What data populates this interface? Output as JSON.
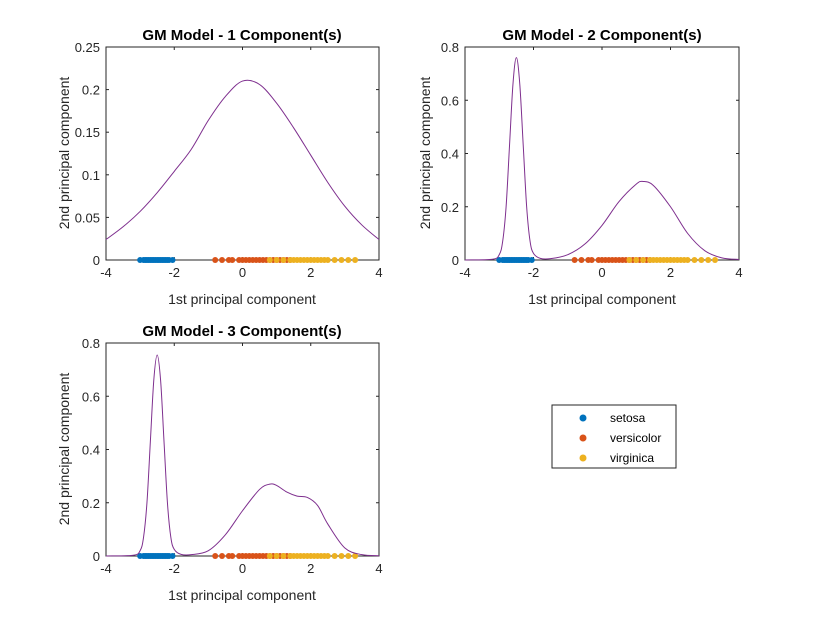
{
  "legend": {
    "entries": [
      {
        "label": "setosa",
        "color": "#0072BD"
      },
      {
        "label": "versicolor",
        "color": "#D95319"
      },
      {
        "label": "virginica",
        "color": "#EDB120"
      }
    ]
  },
  "curve_color": "#7E2F8E",
  "chart_data": [
    {
      "type": "line",
      "title": "GM Model - 1 Component(s)",
      "xlabel": "1st principal component",
      "ylabel": "2nd principal component",
      "xlim": [
        -4,
        4
      ],
      "ylim": [
        0,
        0.25
      ],
      "xticks": [
        -4,
        -2,
        0,
        2,
        4
      ],
      "yticks": [
        0,
        0.05,
        0.1,
        0.15,
        0.2,
        0.25
      ],
      "ytick_labels": [
        "0",
        "0.05",
        "0.1",
        "0.15",
        "0.2",
        "0.25"
      ],
      "curve": {
        "x": [
          -4,
          -3.5,
          -3,
          -2.5,
          -2,
          -1.5,
          -1,
          -0.5,
          0,
          0.5,
          1,
          1.5,
          2,
          2.5,
          3,
          3.5,
          4
        ],
        "y": [
          0.024,
          0.039,
          0.057,
          0.079,
          0.104,
          0.13,
          0.164,
          0.192,
          0.21,
          0.206,
          0.184,
          0.155,
          0.123,
          0.091,
          0.063,
          0.041,
          0.024
        ]
      },
      "scatter": [
        {
          "group": "setosa",
          "x": [
            -3.0,
            -2.9,
            -2.85,
            -2.8,
            -2.75,
            -2.7,
            -2.65,
            -2.6,
            -2.55,
            -2.5,
            -2.45,
            -2.4,
            -2.35,
            -2.3,
            -2.25,
            -2.2,
            -2.15,
            -2.05
          ]
        },
        {
          "group": "versicolor",
          "x": [
            -0.8,
            -0.6,
            -0.4,
            -0.3,
            -0.1,
            0.0,
            0.1,
            0.2,
            0.3,
            0.4,
            0.5,
            0.6,
            0.7,
            0.8,
            0.9,
            1.0,
            1.1,
            1.2,
            1.3,
            1.4
          ]
        },
        {
          "group": "virginica",
          "x": [
            0.8,
            1.0,
            1.2,
            1.4,
            1.5,
            1.6,
            1.7,
            1.8,
            1.9,
            2.0,
            2.1,
            2.2,
            2.3,
            2.4,
            2.5,
            2.7,
            2.9,
            3.1,
            3.3
          ]
        }
      ]
    },
    {
      "type": "line",
      "title": "GM Model - 2 Component(s)",
      "xlabel": "1st principal component",
      "ylabel": "2nd principal component",
      "xlim": [
        -4,
        4
      ],
      "ylim": [
        0,
        0.8
      ],
      "xticks": [
        -4,
        -2,
        0,
        2,
        4
      ],
      "yticks": [
        0,
        0.2,
        0.4,
        0.6,
        0.8
      ],
      "ytick_labels": [
        "0",
        "0.2",
        "0.4",
        "0.6",
        "0.8"
      ],
      "curve": {
        "x": [
          -4,
          -3.2,
          -3.0,
          -2.9,
          -2.8,
          -2.7,
          -2.6,
          -2.5,
          -2.4,
          -2.3,
          -2.2,
          -2.1,
          -2.0,
          -1.8,
          -1.5,
          -1.0,
          -0.5,
          0,
          0.5,
          1.0,
          1.2,
          1.5,
          2.0,
          2.5,
          3.0,
          3.5,
          4.0
        ],
        "y": [
          0,
          0.003,
          0.02,
          0.07,
          0.2,
          0.43,
          0.66,
          0.76,
          0.66,
          0.43,
          0.2,
          0.07,
          0.025,
          0.006,
          0.005,
          0.02,
          0.06,
          0.13,
          0.22,
          0.285,
          0.295,
          0.28,
          0.2,
          0.1,
          0.035,
          0.008,
          0.002
        ]
      },
      "scatter": [
        {
          "group": "setosa",
          "x": [
            -3.0,
            -2.9,
            -2.85,
            -2.8,
            -2.75,
            -2.7,
            -2.65,
            -2.6,
            -2.55,
            -2.5,
            -2.45,
            -2.4,
            -2.35,
            -2.3,
            -2.25,
            -2.2,
            -2.15,
            -2.05
          ]
        },
        {
          "group": "versicolor",
          "x": [
            -0.8,
            -0.6,
            -0.4,
            -0.3,
            -0.1,
            0.0,
            0.1,
            0.2,
            0.3,
            0.4,
            0.5,
            0.6,
            0.7,
            0.8,
            0.9,
            1.0,
            1.1,
            1.2,
            1.3,
            1.4
          ]
        },
        {
          "group": "virginica",
          "x": [
            0.8,
            1.0,
            1.2,
            1.4,
            1.5,
            1.6,
            1.7,
            1.8,
            1.9,
            2.0,
            2.1,
            2.2,
            2.3,
            2.4,
            2.5,
            2.7,
            2.9,
            3.1,
            3.3
          ]
        }
      ]
    },
    {
      "type": "line",
      "title": "GM Model - 3 Component(s)",
      "xlabel": "1st principal component",
      "ylabel": "2nd principal component",
      "xlim": [
        -4,
        4
      ],
      "ylim": [
        0,
        0.8
      ],
      "xticks": [
        -4,
        -2,
        0,
        2,
        4
      ],
      "yticks": [
        0,
        0.2,
        0.4,
        0.6,
        0.8
      ],
      "ytick_labels": [
        "0",
        "0.2",
        "0.4",
        "0.6",
        "0.8"
      ],
      "curve": {
        "x": [
          -4,
          -3.2,
          -3.0,
          -2.9,
          -2.8,
          -2.7,
          -2.6,
          -2.5,
          -2.4,
          -2.3,
          -2.2,
          -2.1,
          -2.0,
          -1.8,
          -1.5,
          -1.0,
          -0.5,
          0,
          0.5,
          0.8,
          1.0,
          1.3,
          1.6,
          1.9,
          2.2,
          2.5,
          3.0,
          3.5,
          4.0
        ],
        "y": [
          0,
          0.003,
          0.02,
          0.07,
          0.2,
          0.43,
          0.66,
          0.755,
          0.66,
          0.43,
          0.2,
          0.07,
          0.025,
          0.006,
          0.005,
          0.02,
          0.08,
          0.17,
          0.25,
          0.27,
          0.265,
          0.24,
          0.225,
          0.22,
          0.19,
          0.12,
          0.03,
          0.005,
          0.001
        ]
      },
      "scatter": [
        {
          "group": "setosa",
          "x": [
            -3.0,
            -2.9,
            -2.85,
            -2.8,
            -2.75,
            -2.7,
            -2.65,
            -2.6,
            -2.55,
            -2.5,
            -2.45,
            -2.4,
            -2.35,
            -2.3,
            -2.25,
            -2.2,
            -2.15,
            -2.05
          ]
        },
        {
          "group": "versicolor",
          "x": [
            -0.8,
            -0.6,
            -0.4,
            -0.3,
            -0.1,
            0.0,
            0.1,
            0.2,
            0.3,
            0.4,
            0.5,
            0.6,
            0.7,
            0.8,
            0.9,
            1.0,
            1.1,
            1.2,
            1.3,
            1.4
          ]
        },
        {
          "group": "virginica",
          "x": [
            0.8,
            1.0,
            1.2,
            1.4,
            1.5,
            1.6,
            1.7,
            1.8,
            1.9,
            2.0,
            2.1,
            2.2,
            2.3,
            2.4,
            2.5,
            2.7,
            2.9,
            3.1,
            3.3
          ]
        }
      ]
    }
  ]
}
